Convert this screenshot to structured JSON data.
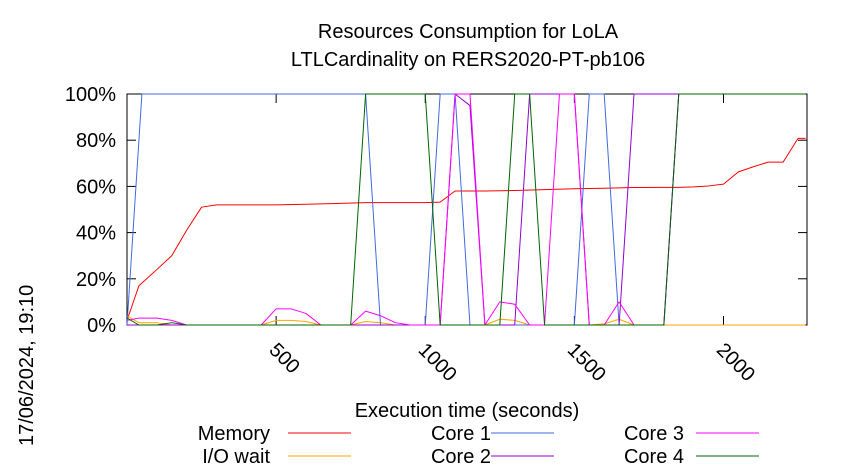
{
  "chart_data": {
    "type": "line",
    "title": "Resources Consumption for LoLA",
    "subtitle": "LTLCardinality on RERS2020-PT-pb106",
    "xlabel": "Execution time (seconds)",
    "ylabel": "",
    "timestamp": "17/06/2024, 19:10",
    "xlim": [
      0,
      2280
    ],
    "ylim": [
      0,
      100
    ],
    "x_ticks": [
      500,
      1000,
      1500,
      2000
    ],
    "x_tick_labels": [
      "500",
      "1000",
      "1500",
      "2000"
    ],
    "y_ticks": [
      0,
      20,
      40,
      60,
      80,
      100
    ],
    "y_tick_labels": [
      "0%",
      "20%",
      "40%",
      "60%",
      "80%",
      "100%"
    ],
    "legend_position": "bottom",
    "series": [
      {
        "name": "Memory",
        "color": "#ff0000",
        "points": [
          [
            0,
            2
          ],
          [
            40,
            17
          ],
          [
            100,
            24
          ],
          [
            150,
            30
          ],
          [
            200,
            41
          ],
          [
            250,
            51
          ],
          [
            300,
            52
          ],
          [
            400,
            52
          ],
          [
            500,
            52
          ],
          [
            600,
            52.3
          ],
          [
            700,
            52.6
          ],
          [
            800,
            53
          ],
          [
            900,
            53
          ],
          [
            1000,
            53
          ],
          [
            1050,
            53.2
          ],
          [
            1100,
            58
          ],
          [
            1200,
            58
          ],
          [
            1300,
            58.2
          ],
          [
            1400,
            58.6
          ],
          [
            1500,
            59
          ],
          [
            1600,
            59.2
          ],
          [
            1700,
            59.5
          ],
          [
            1800,
            59.6
          ],
          [
            1850,
            59.6
          ],
          [
            1900,
            59.8
          ],
          [
            1950,
            60.2
          ],
          [
            2000,
            61
          ],
          [
            2050,
            66.3
          ],
          [
            2100,
            68.5
          ],
          [
            2150,
            70.5
          ],
          [
            2200,
            70.5
          ],
          [
            2250,
            80.8
          ],
          [
            2275,
            80.8
          ]
        ]
      },
      {
        "name": "I/O wait",
        "color": "#ffa500",
        "points": [
          [
            0,
            4
          ],
          [
            40,
            1
          ],
          [
            100,
            1
          ],
          [
            150,
            0
          ],
          [
            450,
            0
          ],
          [
            500,
            2
          ],
          [
            550,
            2
          ],
          [
            600,
            1.5
          ],
          [
            650,
            0
          ],
          [
            750,
            0
          ],
          [
            800,
            1.5
          ],
          [
            850,
            1
          ],
          [
            900,
            0
          ],
          [
            1100,
            0
          ],
          [
            1200,
            0
          ],
          [
            1250,
            2.5
          ],
          [
            1300,
            2
          ],
          [
            1350,
            0
          ],
          [
            1550,
            0
          ],
          [
            1600,
            0.5
          ],
          [
            1650,
            2.5
          ],
          [
            1700,
            0
          ],
          [
            2275,
            0
          ]
        ]
      },
      {
        "name": "Core 1",
        "color": "#4169e1",
        "points": [
          [
            0,
            0
          ],
          [
            50,
            100
          ],
          [
            800,
            100
          ],
          [
            850,
            0
          ],
          [
            1000,
            0
          ],
          [
            1050,
            100
          ],
          [
            1100,
            100
          ],
          [
            1150,
            0
          ],
          [
            1500,
            0
          ],
          [
            1550,
            100
          ],
          [
            1600,
            100
          ],
          [
            1650,
            0
          ],
          [
            1800,
            0
          ],
          [
            1850,
            100
          ],
          [
            2275,
            100
          ]
        ]
      },
      {
        "name": "Core 2",
        "color": "#9400d3",
        "points": [
          [
            0,
            0
          ],
          [
            1050,
            0
          ],
          [
            1100,
            100
          ],
          [
            1150,
            95
          ],
          [
            1200,
            0
          ],
          [
            1300,
            0
          ],
          [
            1350,
            100
          ],
          [
            1500,
            100
          ],
          [
            1550,
            0
          ],
          [
            1650,
            0
          ],
          [
            1700,
            100
          ],
          [
            2275,
            100
          ]
        ]
      },
      {
        "name": "Core 3",
        "color": "#ff00ff",
        "points": [
          [
            0,
            2
          ],
          [
            40,
            3
          ],
          [
            100,
            3
          ],
          [
            150,
            2
          ],
          [
            200,
            0
          ],
          [
            450,
            0
          ],
          [
            500,
            7
          ],
          [
            550,
            7
          ],
          [
            600,
            5
          ],
          [
            650,
            0
          ],
          [
            750,
            0
          ],
          [
            800,
            6
          ],
          [
            850,
            4
          ],
          [
            900,
            1
          ],
          [
            950,
            0
          ],
          [
            1000,
            0
          ],
          [
            1050,
            0
          ],
          [
            1100,
            100
          ],
          [
            1150,
            100
          ],
          [
            1200,
            0
          ],
          [
            1250,
            10
          ],
          [
            1300,
            9
          ],
          [
            1350,
            0
          ],
          [
            1400,
            0
          ],
          [
            1450,
            100
          ],
          [
            1500,
            100
          ],
          [
            1550,
            0
          ],
          [
            1600,
            0
          ],
          [
            1650,
            10
          ],
          [
            1700,
            0
          ],
          [
            1800,
            0
          ],
          [
            1850,
            100
          ],
          [
            2275,
            100
          ]
        ]
      },
      {
        "name": "Core 4",
        "color": "#006400",
        "points": [
          [
            0,
            3
          ],
          [
            40,
            0
          ],
          [
            100,
            0
          ],
          [
            150,
            1
          ],
          [
            200,
            0
          ],
          [
            750,
            0
          ],
          [
            800,
            100
          ],
          [
            1000,
            100
          ],
          [
            1050,
            0
          ],
          [
            1250,
            0
          ],
          [
            1300,
            100
          ],
          [
            1350,
            100
          ],
          [
            1400,
            0
          ],
          [
            1800,
            0
          ],
          [
            1850,
            100
          ],
          [
            2275,
            100
          ]
        ]
      }
    ]
  }
}
